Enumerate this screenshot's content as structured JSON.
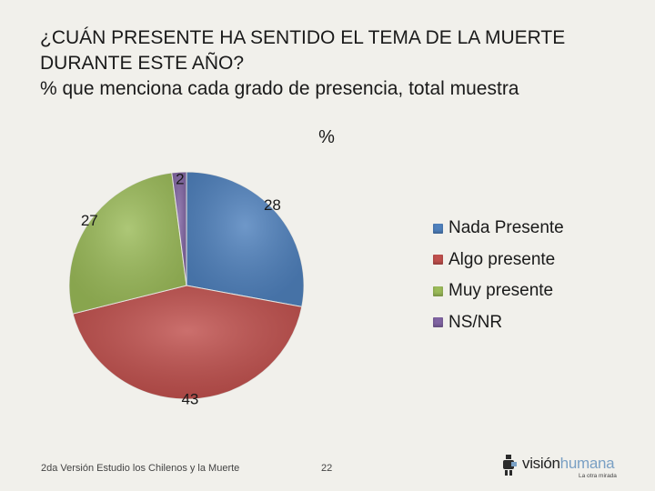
{
  "title": {
    "line1": "¿CUÁN PRESENTE HA SENTIDO EL TEMA DE LA MUERTE",
    "line2": "DURANTE ESTE AÑO?",
    "line3": "% que menciona cada grado de presencia, total muestra"
  },
  "chart_data": {
    "type": "pie",
    "title": "%",
    "labels": [
      "Nada Presente",
      "Algo presente",
      "Muy presente",
      "NS/NR"
    ],
    "values": [
      28,
      43,
      27,
      2
    ],
    "colors": [
      "#4f81bd",
      "#c0504d",
      "#9bbb59",
      "#8064a2"
    ],
    "legend_position": "right"
  },
  "footer": {
    "source": "2da Versión Estudio los Chilenos y la Muerte",
    "page": "22"
  },
  "logo": {
    "word_a": "visión",
    "word_b": "humana",
    "tagline": "La otra mirada"
  }
}
